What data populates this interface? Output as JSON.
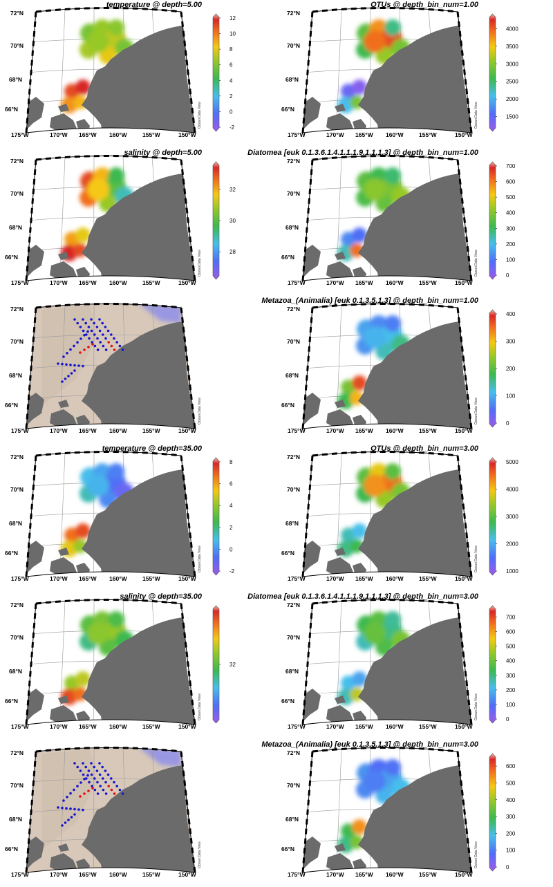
{
  "map": {
    "lat_labels": [
      "72°N",
      "70°N",
      "68°N",
      "66°N"
    ],
    "lon_labels": [
      "175°W",
      "170°W",
      "165°W",
      "160°W",
      "155°W",
      "150°W"
    ],
    "watermark": "Ocean Data View",
    "land_color": "#6b6b6b",
    "ocean_color": "#ffffff"
  },
  "panels": [
    {
      "title": "temperature @ depth=5.00",
      "type": "field",
      "region": "split",
      "pattern": "temp5",
      "colorbar": {
        "ticks": [
          "12",
          "10",
          "8",
          "6",
          "4",
          "2",
          "0",
          "-2"
        ],
        "min": -2,
        "max": 12
      }
    },
    {
      "title": "OTUs @ depth_bin_num=1.00",
      "type": "field",
      "region": "split",
      "pattern": "otu1",
      "colorbar": {
        "ticks": [
          "4000",
          "3500",
          "3000",
          "2500",
          "2000",
          "1500"
        ],
        "min": 1200,
        "max": 4300
      }
    },
    {
      "title": "salinity @ depth=5.00",
      "type": "field",
      "region": "split",
      "pattern": "sal5",
      "colorbar": {
        "ticks": [
          "32",
          "30",
          "28"
        ],
        "min": 26.5,
        "max": 33.5
      }
    },
    {
      "title": "Diatomea [euk 0.1.3.6.1.4.1.1.1.9.1.1.1.3] @ depth_bin_num=1.00",
      "type": "field",
      "region": "split",
      "pattern": "dia1",
      "colorbar": {
        "ticks": [
          "700",
          "600",
          "500",
          "400",
          "300",
          "200",
          "100",
          "0"
        ],
        "min": 0,
        "max": 700
      }
    },
    {
      "title": "",
      "type": "stations",
      "region": "stations",
      "pattern": "stations",
      "colorbar": null
    },
    {
      "title": "Metazoa_(Animalia) [euk 0.1.3.5.1.3] @ depth_bin_num=1.00",
      "type": "field",
      "region": "split",
      "pattern": "met1",
      "colorbar": {
        "ticks": [
          "400",
          "300",
          "200",
          "100",
          "0"
        ],
        "min": 0,
        "max": 400
      }
    },
    {
      "title": "temperature @ depth=35.00",
      "type": "field",
      "region": "split",
      "pattern": "temp35",
      "colorbar": {
        "ticks": [
          "8",
          "6",
          "4",
          "2",
          "0",
          "-2"
        ],
        "min": -2,
        "max": 8
      }
    },
    {
      "title": "OTUs @ depth_bin_num=3.00",
      "type": "field",
      "region": "split",
      "pattern": "otu3",
      "colorbar": {
        "ticks": [
          "5000",
          "4000",
          "3000",
          "2000",
          "1000"
        ],
        "min": 1000,
        "max": 5000
      }
    },
    {
      "title": "salinity @ depth=35.00",
      "type": "field",
      "region": "split",
      "pattern": "sal35",
      "colorbar": {
        "ticks": [
          "32"
        ],
        "min": 29,
        "max": 35
      }
    },
    {
      "title": "Diatomea [euk 0.1.3.6.1.4.1.1.1.9.1.1.1.3] @ depth_bin_num=3.00",
      "type": "field",
      "region": "split",
      "pattern": "dia3",
      "colorbar": {
        "ticks": [
          "700",
          "600",
          "500",
          "400",
          "300",
          "200",
          "100",
          "0"
        ],
        "min": 0,
        "max": 750
      }
    },
    {
      "title": "",
      "type": "stations",
      "region": "stations",
      "pattern": "stations",
      "colorbar": null
    },
    {
      "title": "Metazoa_(Animalia) [euk 0.1.3.5.1.3] @ depth_bin_num=3.00",
      "type": "field",
      "region": "split",
      "pattern": "met3",
      "colorbar": {
        "ticks": [
          "600",
          "500",
          "400",
          "300",
          "200",
          "100",
          "0"
        ],
        "min": 0,
        "max": 650
      }
    }
  ]
}
